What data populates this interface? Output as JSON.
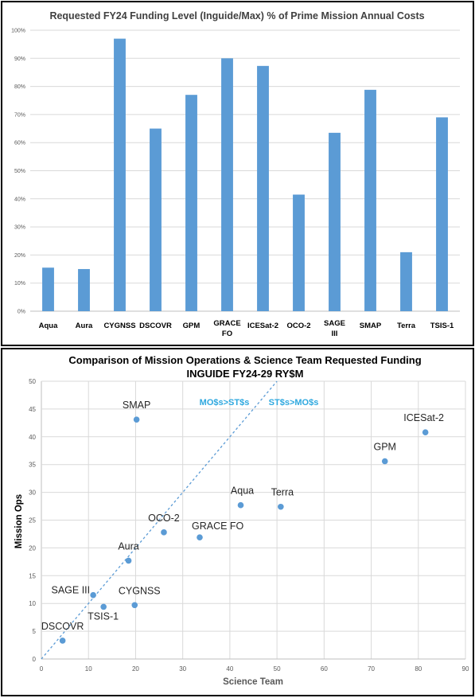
{
  "chart_data": [
    {
      "type": "bar",
      "title": "Requested FY24 Funding Level (Inguide/Max) % of Prime Mission Annual Costs",
      "categories": [
        "Aqua",
        "Aura",
        "CYGNSS",
        "DSCOVR",
        "GPM",
        "GRACE FO",
        "ICESat-2",
        "OCO-2",
        "SAGE III",
        "SMAP",
        "Terra",
        "TSIS-1"
      ],
      "values": [
        15.5,
        15.0,
        97.0,
        65.0,
        77.0,
        90.0,
        87.3,
        41.5,
        63.5,
        78.8,
        21.0,
        69.0
      ],
      "ylim": [
        0,
        100
      ],
      "yticks": [
        "0%",
        "10%",
        "20%",
        "30%",
        "40%",
        "50%",
        "60%",
        "70%",
        "80%",
        "90%",
        "100%"
      ],
      "grid": true,
      "bar_color": "#5b9bd5"
    },
    {
      "type": "scatter",
      "title": "Comparison of Mission Operations & Science Team Requested Funding",
      "subtitle": "INGUIDE FY24-29 RY$M",
      "xlabel": "Science Team",
      "ylabel": "Mission Ops",
      "xlim": [
        0,
        90
      ],
      "ylim": [
        0,
        50
      ],
      "xticks": [
        "0",
        "10",
        "20",
        "30",
        "40",
        "50",
        "60",
        "70",
        "80",
        "90"
      ],
      "yticks": [
        "0",
        "5",
        "10",
        "15",
        "20",
        "25",
        "30",
        "35",
        "40",
        "45",
        "50"
      ],
      "grid": true,
      "points": [
        {
          "label": "SMAP",
          "x": 20.2,
          "y": 43.1
        },
        {
          "label": "ICESat-2",
          "x": 81.5,
          "y": 40.8
        },
        {
          "label": "GPM",
          "x": 72.9,
          "y": 35.6
        },
        {
          "label": "Aqua",
          "x": 42.3,
          "y": 27.7
        },
        {
          "label": "Terra",
          "x": 50.8,
          "y": 27.4
        },
        {
          "label": "OCO-2",
          "x": 26.0,
          "y": 22.8
        },
        {
          "label": "GRACE FO",
          "x": 33.6,
          "y": 21.9
        },
        {
          "label": "Aura",
          "x": 18.5,
          "y": 17.7
        },
        {
          "label": "SAGE III",
          "x": 11.0,
          "y": 11.5
        },
        {
          "label": "CYGNSS",
          "x": 19.8,
          "y": 9.7
        },
        {
          "label": "TSIS-1",
          "x": 13.2,
          "y": 9.4
        },
        {
          "label": "DSCOVR",
          "x": 4.5,
          "y": 3.3
        }
      ],
      "reference_line": {
        "from": [
          0,
          0
        ],
        "to": [
          50,
          50
        ]
      },
      "annotations": [
        "MO$s>ST$s",
        "ST$s>MO$s"
      ],
      "point_color": "#5b9bd5",
      "annotation_color": "#2ea8df"
    }
  ]
}
